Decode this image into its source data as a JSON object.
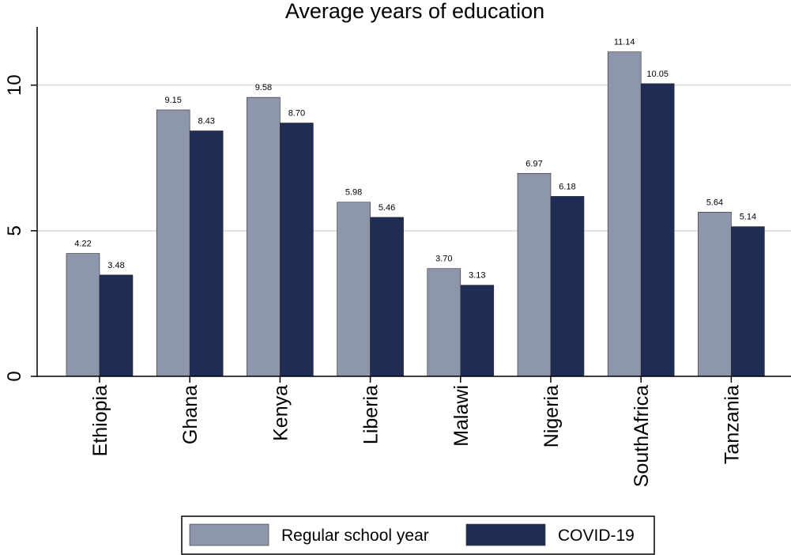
{
  "chart_data": {
    "type": "bar",
    "title": "Average years of education",
    "xlabel": "",
    "ylabel": "",
    "ylim": [
      0,
      12
    ],
    "yticks": [
      0,
      5,
      10
    ],
    "grid": true,
    "legend_position": "bottom",
    "categories": [
      "Ethiopia",
      "Ghana",
      "Kenya",
      "Liberia",
      "Malawi",
      "Nigeria",
      "SouthAfrica",
      "Tanzania"
    ],
    "series": [
      {
        "name": "Regular school year",
        "color": "#8d96aa",
        "values": [
          4.22,
          9.15,
          9.58,
          5.98,
          3.7,
          6.97,
          11.14,
          5.64
        ],
        "labels": [
          "4.22",
          "9.15",
          "9.58",
          "5.98",
          "3.70",
          "6.97",
          "11.14",
          "5.64"
        ]
      },
      {
        "name": "COVID-19",
        "color": "#1f2d55",
        "values": [
          3.48,
          8.43,
          8.7,
          5.46,
          3.13,
          6.18,
          10.05,
          5.14
        ],
        "labels": [
          "3.48",
          "8.43",
          "8.70",
          "5.46",
          "3.13",
          "6.18",
          "10.05",
          "5.14"
        ]
      }
    ]
  }
}
